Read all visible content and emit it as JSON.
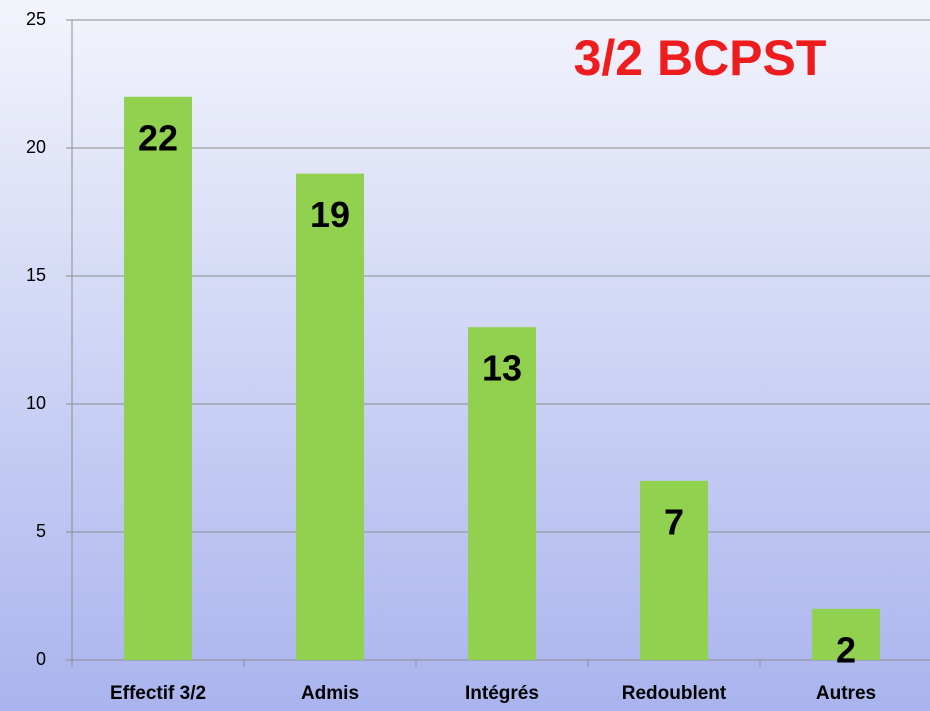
{
  "chart_data": {
    "type": "bar",
    "title": "3/2 BCPST",
    "categories": [
      "Effectif 3/2",
      "Admis",
      "Intégrés",
      "Redoublent",
      "Autres"
    ],
    "values": [
      22,
      19,
      13,
      7,
      2
    ],
    "color": "#92d050",
    "ylim": [
      0,
      25
    ],
    "yticks": [
      0,
      5,
      10,
      15,
      20,
      25
    ],
    "grid": true
  }
}
